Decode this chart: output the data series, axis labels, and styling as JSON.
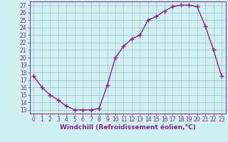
{
  "x": [
    0,
    1,
    2,
    3,
    4,
    5,
    6,
    7,
    8,
    9,
    10,
    11,
    12,
    13,
    14,
    15,
    16,
    17,
    18,
    19,
    20,
    21,
    22,
    23
  ],
  "y": [
    17.5,
    16.0,
    15.0,
    14.3,
    13.5,
    13.0,
    13.0,
    13.0,
    13.2,
    16.3,
    20.0,
    21.5,
    22.5,
    23.0,
    25.0,
    25.5,
    26.2,
    26.8,
    27.0,
    27.0,
    26.8,
    24.2,
    21.0,
    17.5
  ],
  "line_color": "#882288",
  "marker": "+",
  "markersize": 4,
  "markeredgewidth": 1.0,
  "linewidth": 1.0,
  "xlabel": "Windchill (Refroidissement éolien,°C)",
  "xlabel_fontsize": 6.5,
  "ylim": [
    12.5,
    27.5
  ],
  "xlim": [
    -0.5,
    23.5
  ],
  "yticks": [
    13,
    14,
    15,
    16,
    17,
    18,
    19,
    20,
    21,
    22,
    23,
    24,
    25,
    26,
    27
  ],
  "xticks": [
    0,
    1,
    2,
    3,
    4,
    5,
    6,
    7,
    8,
    9,
    10,
    11,
    12,
    13,
    14,
    15,
    16,
    17,
    18,
    19,
    20,
    21,
    22,
    23
  ],
  "bg_color": "#cff0f0",
  "grid_color": "#aabbcc",
  "tick_fontsize": 5.5,
  "spine_color": "#882288",
  "label_color": "#882288"
}
